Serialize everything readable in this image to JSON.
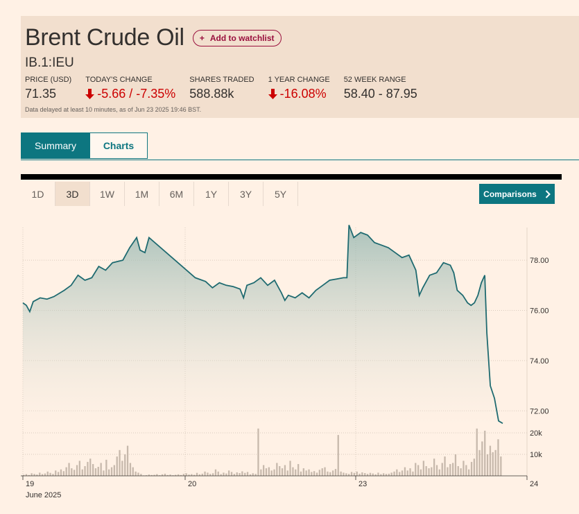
{
  "header": {
    "title": "Brent Crude Oil",
    "watchlist_label": "Add to watchlist",
    "symbol": "IB.1:IEU",
    "delay_note": "Data delayed at least 10 minutes, as of Jun 23 2025 19:46 BST."
  },
  "stats": {
    "price": {
      "label": "PRICE (USD)",
      "value": "71.35"
    },
    "change": {
      "label": "TODAY'S CHANGE",
      "value": "-5.66 / -7.35%"
    },
    "shares": {
      "label": "SHARES TRADED",
      "value": "588.88k"
    },
    "year_change": {
      "label": "1 YEAR CHANGE",
      "value": "-16.08%"
    },
    "range52": {
      "label": "52 WEEK RANGE",
      "value": "58.40 - 87.95"
    }
  },
  "tabs": [
    {
      "label": "Summary"
    },
    {
      "label": "Charts"
    }
  ],
  "ranges": [
    "1D",
    "3D",
    "1W",
    "1M",
    "6M",
    "1Y",
    "3Y",
    "5Y"
  ],
  "active_range": "3D",
  "comparisons_label": "Comparisons",
  "colors": {
    "accent": "#0d7680",
    "negative": "#cc0000",
    "background": "#fff1e5",
    "header_bg": "#f2dfce"
  },
  "chart_data": {
    "type": "area",
    "price_axis": {
      "ticks": [
        "78.00",
        "76.00",
        "74.00",
        "72.00"
      ],
      "values": [
        78,
        76,
        74,
        72
      ],
      "ylim": [
        71.4,
        79.3
      ]
    },
    "volume_axis": {
      "ticks": [
        "20k",
        "10k"
      ],
      "values": [
        20000,
        10000
      ]
    },
    "x_ticks": [
      "19",
      "20",
      "23",
      "24"
    ],
    "month_label": "June 2025",
    "price_series": {
      "name": "",
      "points": [
        [
          0,
          76.3
        ],
        [
          0.5,
          76.2
        ],
        [
          1.0,
          75.95
        ],
        [
          1.5,
          76.35
        ],
        [
          2.5,
          76.5
        ],
        [
          3.5,
          76.45
        ],
        [
          4.5,
          76.55
        ],
        [
          6.0,
          76.8
        ],
        [
          7.0,
          77.0
        ],
        [
          8.0,
          77.4
        ],
        [
          9.0,
          77.2
        ],
        [
          10.0,
          77.3
        ],
        [
          11.0,
          77.75
        ],
        [
          12.0,
          77.6
        ],
        [
          13.0,
          77.9
        ],
        [
          14.5,
          78.0
        ],
        [
          15.5,
          78.5
        ],
        [
          16.5,
          78.9
        ],
        [
          17.0,
          78.4
        ],
        [
          17.7,
          78.3
        ],
        [
          18.3,
          78.9
        ],
        [
          25.0,
          77.3
        ],
        [
          26.5,
          77.15
        ],
        [
          27.5,
          76.9
        ],
        [
          28.5,
          77.1
        ],
        [
          29.5,
          77.0
        ],
        [
          30.5,
          76.95
        ],
        [
          31.5,
          76.85
        ],
        [
          32.0,
          76.5
        ],
        [
          32.5,
          77.0
        ],
        [
          33.5,
          77.1
        ],
        [
          34.5,
          77.3
        ],
        [
          35.5,
          77.0
        ],
        [
          36.5,
          77.2
        ],
        [
          37.5,
          76.7
        ],
        [
          38.0,
          76.4
        ],
        [
          38.5,
          76.6
        ],
        [
          39.5,
          76.5
        ],
        [
          40.5,
          76.7
        ],
        [
          41.5,
          76.5
        ],
        [
          42.5,
          76.8
        ],
        [
          43.5,
          77.0
        ],
        [
          44.5,
          77.2
        ],
        [
          45.5,
          77.25
        ],
        [
          46.5,
          77.3
        ],
        [
          47.0,
          77.3
        ],
        [
          47.3,
          79.4
        ],
        [
          48.0,
          78.9
        ],
        [
          49.0,
          79.1
        ],
        [
          50.0,
          79.0
        ],
        [
          51.0,
          78.7
        ],
        [
          52.0,
          78.6
        ],
        [
          53.0,
          78.5
        ],
        [
          54.0,
          78.3
        ],
        [
          55.0,
          78.1
        ],
        [
          56.0,
          78.2
        ],
        [
          57.0,
          77.6
        ],
        [
          57.5,
          76.6
        ],
        [
          58.0,
          76.9
        ],
        [
          59.0,
          77.4
        ],
        [
          60.0,
          77.5
        ],
        [
          61.0,
          77.9
        ],
        [
          62.0,
          77.8
        ],
        [
          62.5,
          77.5
        ],
        [
          63.0,
          76.8
        ],
        [
          63.8,
          76.6
        ],
        [
          64.5,
          76.3
        ],
        [
          65.0,
          76.2
        ],
        [
          65.5,
          76.3
        ],
        [
          66.0,
          76.6
        ],
        [
          66.5,
          77.1
        ],
        [
          67.0,
          77.4
        ],
        [
          67.3,
          75.1
        ],
        [
          67.8,
          73.0
        ],
        [
          68.4,
          72.5
        ],
        [
          69.0,
          71.6
        ],
        [
          69.6,
          71.5
        ]
      ]
    },
    "volume_series": {
      "name": "",
      "values": [
        500,
        800,
        400,
        1200,
        900,
        600,
        1500,
        800,
        1100,
        2000,
        1400,
        900,
        2500,
        1800,
        3000,
        2200,
        4000,
        6000,
        3500,
        2800,
        5000,
        7000,
        3000,
        4500,
        6500,
        8000,
        5500,
        3500,
        4200,
        6000,
        2500,
        7500,
        3000,
        4000,
        5000,
        9000,
        12000,
        7000,
        10000,
        14000,
        6000,
        4000,
        2000,
        1500,
        900,
        200,
        300,
        600,
        400,
        500,
        800,
        300,
        700,
        1000,
        400,
        600,
        300,
        500,
        700,
        400,
        900,
        1200,
        600,
        800,
        500,
        1400,
        700,
        1000,
        2000,
        1500,
        900,
        1200,
        3000,
        2000,
        800,
        1500,
        1100,
        2500,
        1800,
        900,
        1600,
        1300,
        2100,
        1400,
        1800,
        700,
        1200,
        900,
        22000,
        3000,
        5000,
        3500,
        4000,
        2500,
        3000,
        6000,
        4500,
        3500,
        5000,
        2500,
        7000,
        4000,
        3000,
        5500,
        2000,
        3500,
        2500,
        3000,
        1800,
        2200,
        1500,
        2800,
        3500,
        4000,
        2000,
        1700,
        2500,
        3200,
        19000,
        2000,
        1500,
        1200,
        900,
        1800,
        1400,
        2000,
        1000,
        1600,
        1300,
        900,
        1400,
        1100,
        700,
        1500,
        800,
        1200,
        900,
        1000,
        1500,
        2000,
        3000,
        1800,
        2500,
        4000,
        2500,
        3500,
        2000,
        6000,
        5000,
        3000,
        7000,
        4500,
        3500,
        4000,
        8000,
        5000,
        3000,
        6000,
        9000,
        4000,
        5500,
        6000,
        10000,
        4500,
        3500,
        7000,
        5000,
        3000,
        6500,
        8000,
        22000,
        12000,
        16000,
        21000,
        10000,
        14000,
        11000,
        12000,
        17000,
        9000
      ]
    }
  }
}
